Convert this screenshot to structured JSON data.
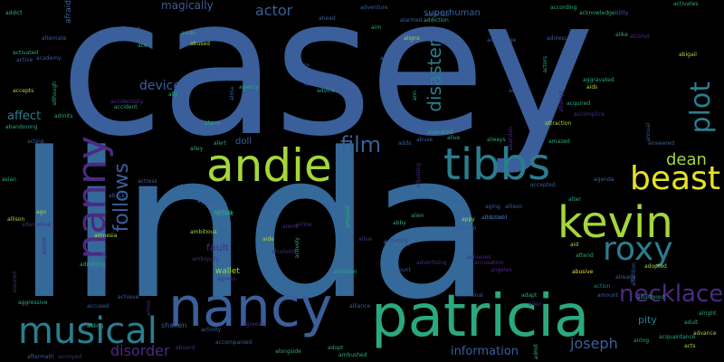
{
  "background": "#000000",
  "palette": {
    "blue": "#3a5f9a",
    "steel": "#35699a",
    "teal": "#2b7d8e",
    "green": "#2aa97f",
    "lime": "#a5d63a",
    "yellow": "#e6e22a",
    "purple": "#4b2a82"
  },
  "words": {
    "casey": "casey",
    "linda": "linda",
    "patricia": "patricia",
    "nancy_h": "nancy",
    "nanny": "nanny",
    "andie": "andie",
    "tibbs": "tibbs",
    "kevin": "kevin",
    "beast": "beast",
    "roxy": "roxy",
    "musical": "musical",
    "necklace": "necklace",
    "plot": "plot",
    "disaster": "disaster",
    "follows": "follows",
    "film": "film",
    "dean": "dean",
    "joseph": "joseph",
    "disorder": "disorder",
    "information": "information",
    "actor": "actor",
    "magically": "magically",
    "device": "device",
    "affect": "affect",
    "superhuman": "superhuman",
    "fault": "fault",
    "pity": "pity",
    "doll": "doll",
    "wallet": "wallet",
    "shaken": "shaken",
    "aggressive": "aggressive",
    "accused": "accused",
    "achieve": "achieve",
    "account": "account",
    "additional": "additional",
    "accompanied": "accompanied",
    "alongside": "alongside",
    "ambition": "ambition",
    "abusive": "abusive",
    "action": "action",
    "adult": "adult",
    "ambushed": "ambushed",
    "adopt": "adopt",
    "advance": "advance",
    "airport": "airport",
    "adventure": "adventure",
    "activates": "activates",
    "according": "according",
    "abigail": "abigail",
    "actual": "actual",
    "alarmed": "alarmed",
    "agreed": "agreed",
    "abduction": "abduction",
    "actress": "actress",
    "alien": "alien",
    "aim": "aim",
    "absent": "absent",
    "acquired": "acquired",
    "abducted": "abducted",
    "accepted": "accepted",
    "acting": "acting",
    "adds": "adds",
    "abandoning": "abandoning",
    "accepts": "accepts",
    "alternate": "alternate",
    "activated": "activated",
    "advice": "advice",
    "admits": "admits",
    "attraction": "attraction",
    "ally": "ally",
    "alert": "alert",
    "alive": "alive",
    "alike": "alike",
    "alienated": "alienated",
    "abused": "abused",
    "agency": "agency",
    "airfare": "airfare",
    "aftermath": "aftermath",
    "annoyed": "annoyed",
    "activity": "activity",
    "affair": "affair",
    "adaptation": "adaptation",
    "asian": "asian",
    "acts": "acts",
    "age": "age",
    "accident": "accident",
    "adding": "adding",
    "admitting": "admitting",
    "aiding": "aiding",
    "addicted": "addicted",
    "ago": "ago",
    "anna": "anna",
    "also": "also",
    "address": "address",
    "appy": "appy",
    "abby": "abby",
    "addiction": "addiction",
    "adoption": "adoption",
    "aligns": "aligns",
    "ahead": "ahead",
    "adds2": "addresses",
    "adapted": "adapted",
    "abduction2": "abduction",
    "accomplice": "accomplice",
    "alcoholic": "alcoholic",
    "aid": "aid",
    "addict": "addict",
    "alright": "alright",
    "acclaimed": "acclaimed",
    "amnesia": "amnesia",
    "airline": "airline",
    "accidentally": "accidentally",
    "allies": "allies",
    "alternative": "alternative",
    "academy": "academy",
    "advantage": "advantage",
    "ace": "ace",
    "adolescent": "adolescent",
    "accompanying": "accompanying",
    "afraid": "afraid",
    "alone": "alone",
    "aggravated": "aggravated",
    "acknowledge": "acknowledge",
    "alcohol": "alcohol",
    "aids": "aids",
    "agrees": "agrees",
    "aliens": "aliens",
    "aired": "aired",
    "abusive2": "abusive",
    "accepted2": "accepted",
    "adjusting": "adjusting",
    "acquaintance": "acquaintance",
    "admit": "admit",
    "answered": "answered",
    "ability": "ability",
    "afterwards": "afterwards",
    "agreeing": "agreeing",
    "advertising": "advertising",
    "aside": "aside",
    "adopted": "adopted",
    "ambitious": "ambitious",
    "airplane": "airplane",
    "allowed": "allowed",
    "actively": "actively",
    "added": "added",
    "aging": "aging",
    "already": "already",
    "although": "although",
    "amazed": "amazed",
    "agent": "agent",
    "accusing": "accusing",
    "adjusts": "adjusts",
    "abuse": "abuse",
    "arrive": "arrive",
    "aims": "aims",
    "accent": "accent",
    "almost": "almost",
    "allowing": "allowing",
    "alter": "alter",
    "affection": "affection",
    "admirer": "admirer",
    "allen": "allen",
    "attend": "attend",
    "allow": "allow",
    "ability2": "ability",
    "always": "always",
    "aboard": "aboard",
    "ambiguity": "ambiguity",
    "assured": "assured",
    "alliance": "alliance",
    "aback": "aback",
    "achieves": "achieves",
    "annual": "annual",
    "active": "active",
    "affected": "affected",
    "alarm": "alarm",
    "agenda": "agenda",
    "aide": "aide",
    "alley": "alley",
    "accepting": "accepting",
    "allowed2": "allows",
    "alma": "alma",
    "amused": "amused",
    "adapt": "adapt",
    "airing": "airing",
    "accusation": "accusation",
    "adulthood": "adulthood",
    "angeles": "angeles",
    "abandon": "abandon",
    "allison": "allison",
    "amount": "amount",
    "attempt": "attempt",
    "actor2": "actors",
    "ann": "ann"
  }
}
